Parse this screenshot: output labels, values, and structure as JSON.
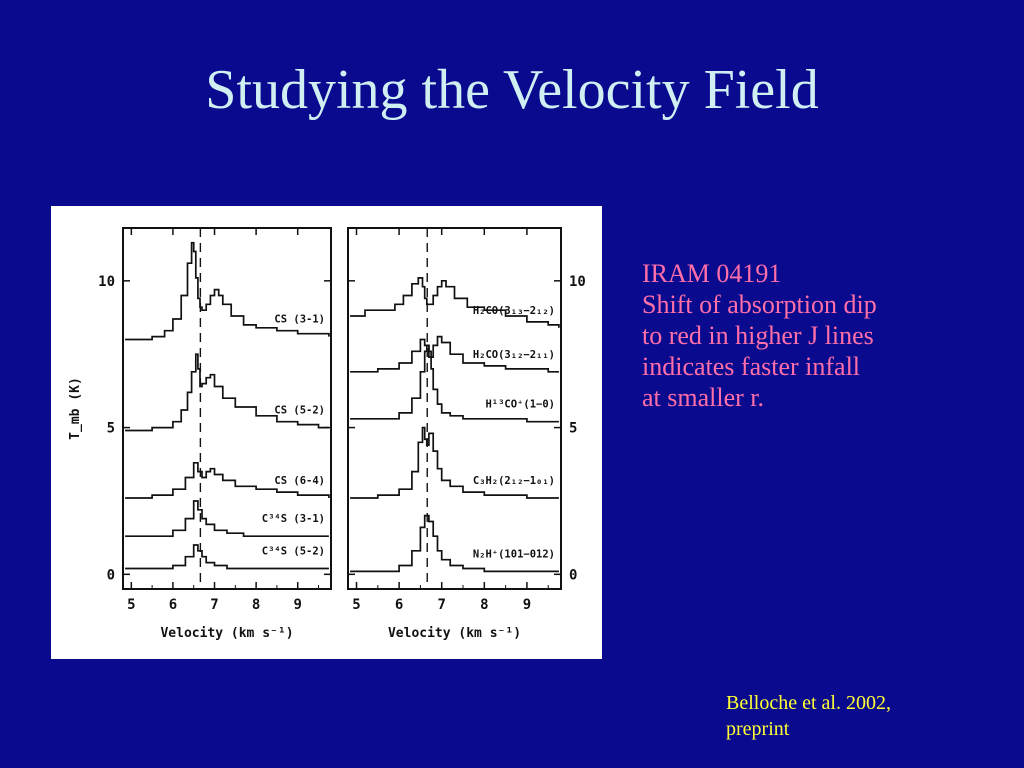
{
  "slide": {
    "title": "Studying the Velocity Field",
    "body_lines": [
      "IRAM 04191",
      "Shift of absorption dip",
      "to red in higher J lines",
      "indicates faster infall",
      "at smaller r."
    ],
    "citation_lines": [
      "Belloche et al. 2002,",
      "preprint"
    ],
    "colors": {
      "background": "#0a0a8f",
      "title": "#cfeff2",
      "body": "#ff6fa8",
      "citation": "#ffff33"
    }
  },
  "chart_data": [
    {
      "type": "line",
      "panel": "left",
      "xlabel": "Velocity (km s⁻¹)",
      "ylabel": "T_mb (K)",
      "xlim": [
        4.8,
        9.8
      ],
      "ylim": [
        -0.5,
        11.8
      ],
      "x_ticks": [
        "5",
        "6",
        "7",
        "8",
        "9"
      ],
      "y_ticks": [
        "0",
        "5",
        "10"
      ],
      "y_ticks_side": "left",
      "reference_velocity": 6.66,
      "series": [
        {
          "name": "CS (3-1)",
          "x": [
            4.85,
            5.2,
            5.5,
            5.8,
            6.0,
            6.2,
            6.35,
            6.45,
            6.5,
            6.55,
            6.6,
            6.65,
            6.7,
            6.8,
            6.9,
            7.0,
            7.1,
            7.2,
            7.4,
            7.7,
            8.0,
            8.5,
            9.0,
            9.5,
            9.75
          ],
          "y": [
            8.0,
            8.0,
            8.1,
            8.3,
            8.7,
            9.5,
            10.6,
            11.3,
            11.0,
            10.1,
            9.4,
            9.1,
            9.0,
            9.2,
            9.5,
            9.7,
            9.5,
            9.2,
            8.8,
            8.5,
            8.4,
            8.3,
            8.2,
            8.2,
            8.1
          ]
        },
        {
          "name": "CS (5-2)",
          "x": [
            4.85,
            5.5,
            6.0,
            6.2,
            6.35,
            6.45,
            6.55,
            6.6,
            6.65,
            6.7,
            6.8,
            6.9,
            7.0,
            7.2,
            7.5,
            8.0,
            8.5,
            9.0,
            9.5,
            9.75
          ],
          "y": [
            4.9,
            5.0,
            5.2,
            5.6,
            6.2,
            6.9,
            7.5,
            7.0,
            6.4,
            6.5,
            6.7,
            6.8,
            6.4,
            6.0,
            5.7,
            5.4,
            5.2,
            5.1,
            5.0,
            5.0
          ]
        },
        {
          "name": "CS (6-4)",
          "x": [
            4.85,
            5.5,
            6.0,
            6.3,
            6.5,
            6.6,
            6.7,
            6.8,
            6.9,
            7.0,
            7.2,
            7.5,
            8.0,
            8.5,
            9.0,
            9.5,
            9.75
          ],
          "y": [
            2.6,
            2.7,
            2.9,
            3.3,
            3.8,
            3.5,
            3.3,
            3.5,
            3.6,
            3.4,
            3.2,
            3.0,
            2.9,
            2.8,
            2.7,
            2.7,
            2.6
          ]
        },
        {
          "name": "C³⁴S (3-1)",
          "x": [
            4.85,
            5.5,
            6.0,
            6.3,
            6.5,
            6.6,
            6.7,
            6.8,
            7.0,
            7.3,
            7.7,
            8.3,
            9.0,
            9.75
          ],
          "y": [
            1.3,
            1.3,
            1.5,
            1.9,
            2.5,
            2.2,
            1.9,
            1.7,
            1.5,
            1.4,
            1.3,
            1.3,
            1.3,
            1.3
          ]
        },
        {
          "name": "C³⁴S (5-2)",
          "x": [
            4.85,
            5.5,
            6.0,
            6.3,
            6.5,
            6.6,
            6.7,
            6.8,
            7.0,
            7.3,
            7.7,
            8.3,
            9.0,
            9.75
          ],
          "y": [
            0.2,
            0.2,
            0.3,
            0.6,
            1.0,
            0.8,
            0.6,
            0.4,
            0.3,
            0.2,
            0.2,
            0.2,
            0.2,
            0.2
          ]
        }
      ]
    },
    {
      "type": "line",
      "panel": "right",
      "xlabel": "Velocity (km s⁻¹)",
      "xlim": [
        4.8,
        9.8
      ],
      "ylim": [
        -0.5,
        11.8
      ],
      "x_ticks": [
        "5",
        "6",
        "7",
        "8",
        "9"
      ],
      "y_ticks": [
        "0",
        "5",
        "10"
      ],
      "y_ticks_side": "right",
      "reference_velocity": 6.66,
      "series": [
        {
          "name": "H₂CO(3₁₃−2₁₂)",
          "x": [
            4.85,
            5.2,
            5.6,
            5.9,
            6.1,
            6.3,
            6.45,
            6.55,
            6.6,
            6.65,
            6.7,
            6.8,
            6.9,
            7.0,
            7.1,
            7.3,
            7.6,
            8.0,
            8.5,
            9.0,
            9.5,
            9.75
          ],
          "y": [
            8.8,
            9.0,
            9.0,
            9.2,
            9.5,
            9.9,
            10.1,
            9.8,
            9.4,
            9.2,
            9.2,
            9.5,
            9.8,
            10.0,
            9.8,
            9.4,
            9.1,
            9.0,
            8.8,
            8.6,
            8.5,
            8.4
          ]
        },
        {
          "name": "H₂CO(3₁₂−2₁₁)",
          "x": [
            4.85,
            5.5,
            6.0,
            6.3,
            6.5,
            6.6,
            6.7,
            6.8,
            6.9,
            7.0,
            7.2,
            7.5,
            8.0,
            8.5,
            9.0,
            9.5,
            9.75
          ],
          "y": [
            6.9,
            7.0,
            7.2,
            7.6,
            8.0,
            7.8,
            7.4,
            7.8,
            8.1,
            7.9,
            7.5,
            7.2,
            7.1,
            7.0,
            7.0,
            6.9,
            6.9
          ]
        },
        {
          "name": "H¹³CO⁺(1−0)",
          "x": [
            4.85,
            5.5,
            6.0,
            6.3,
            6.5,
            6.6,
            6.65,
            6.7,
            6.75,
            6.8,
            6.9,
            7.0,
            7.2,
            7.5,
            8.0,
            8.5,
            9.0,
            9.75
          ],
          "y": [
            5.3,
            5.3,
            5.5,
            6.0,
            6.9,
            7.6,
            7.8,
            7.6,
            7.0,
            6.3,
            5.8,
            5.5,
            5.4,
            5.3,
            5.3,
            5.3,
            5.2,
            5.2
          ]
        },
        {
          "name": "C₃H₂(2₁₂−1₀₁)",
          "x": [
            4.85,
            5.5,
            6.0,
            6.3,
            6.45,
            6.55,
            6.6,
            6.65,
            6.7,
            6.8,
            6.9,
            7.0,
            7.2,
            7.5,
            8.0,
            8.5,
            9.0,
            9.75
          ],
          "y": [
            2.6,
            2.7,
            2.9,
            3.5,
            4.5,
            5.0,
            4.6,
            4.4,
            4.8,
            4.2,
            3.6,
            3.2,
            3.0,
            2.8,
            2.7,
            2.7,
            2.6,
            2.6
          ]
        },
        {
          "name": "N₂H⁺(101−012)",
          "x": [
            4.85,
            5.5,
            6.0,
            6.3,
            6.5,
            6.6,
            6.7,
            6.8,
            6.9,
            7.0,
            7.2,
            7.5,
            8.0,
            8.5,
            9.0,
            9.75
          ],
          "y": [
            0.1,
            0.1,
            0.3,
            0.8,
            1.6,
            2.0,
            1.8,
            1.3,
            0.8,
            0.5,
            0.3,
            0.2,
            0.1,
            0.1,
            0.1,
            0.1
          ]
        }
      ]
    }
  ]
}
